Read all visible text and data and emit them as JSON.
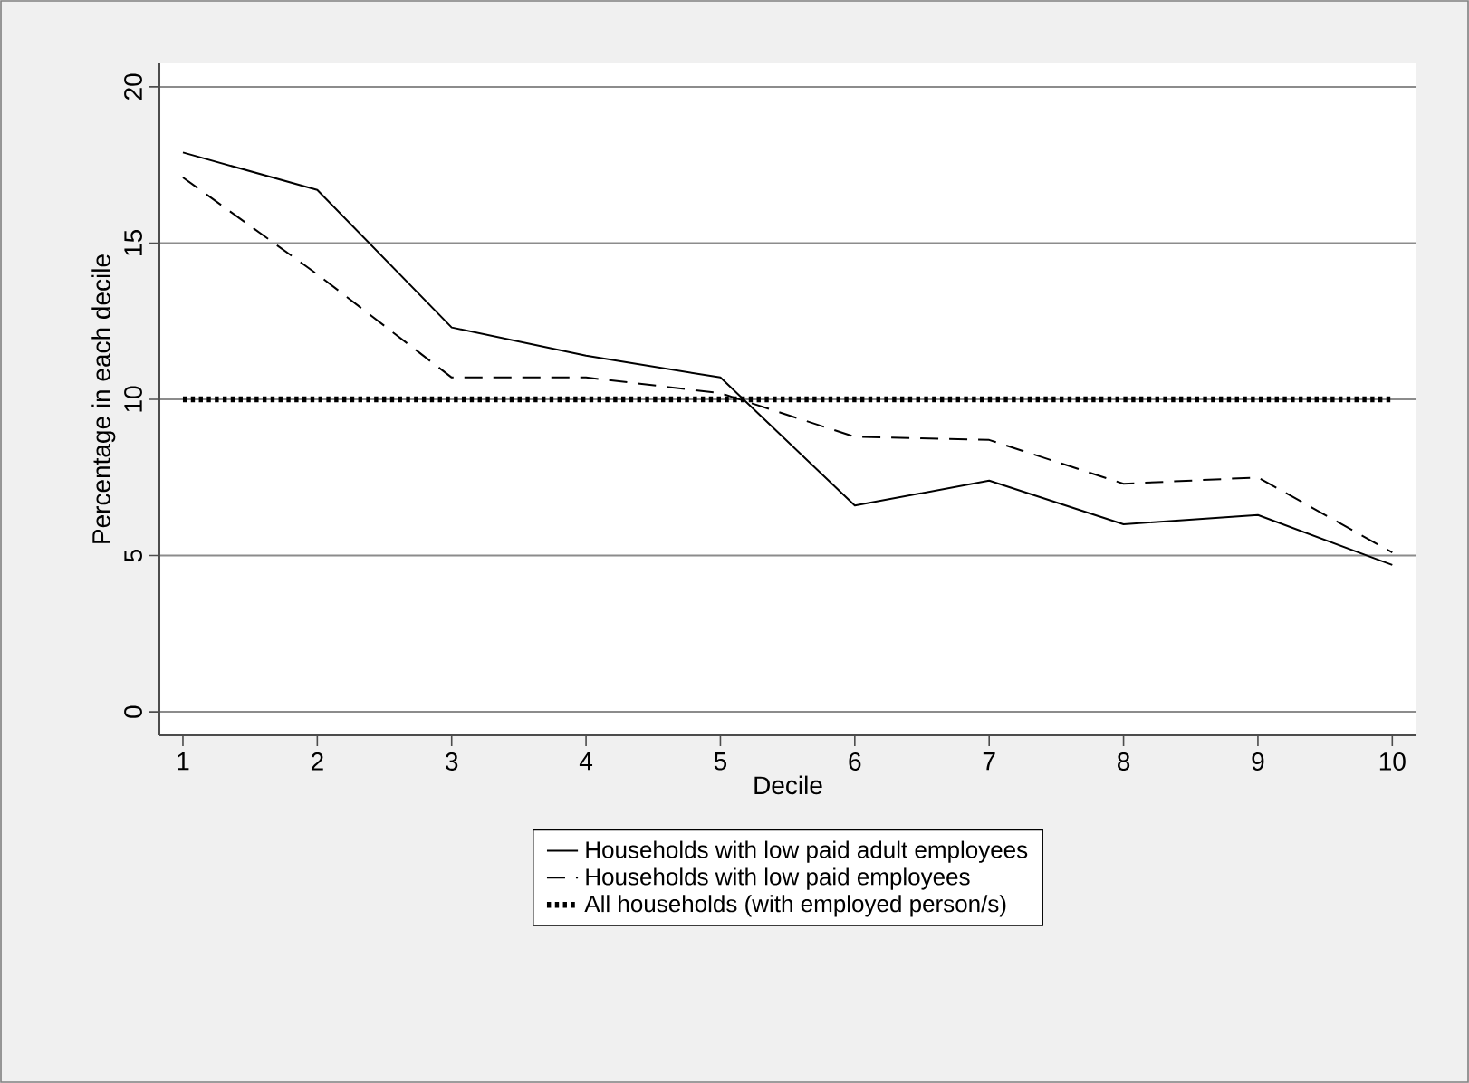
{
  "chart_data": {
    "type": "line",
    "xlabel": "Decile",
    "ylabel": "Percentage in each decile",
    "x": [
      1,
      2,
      3,
      4,
      5,
      6,
      7,
      8,
      9,
      10
    ],
    "series": [
      {
        "name": "Households with low paid adult employees",
        "color": "#000000",
        "line_style": "solid",
        "values": [
          17.9,
          16.7,
          12.3,
          11.4,
          10.7,
          6.6,
          7.4,
          6.0,
          6.3,
          4.7
        ]
      },
      {
        "name": "Households with low paid employees",
        "color": "#000000",
        "line_style": "dashed",
        "values": [
          17.1,
          14.0,
          10.7,
          10.7,
          10.2,
          8.8,
          8.7,
          7.3,
          7.5,
          5.1
        ]
      },
      {
        "name": "All households (with employed person/s)",
        "color": "#000000",
        "line_style": "dotted",
        "values": [
          10,
          10,
          10,
          10,
          10,
          10,
          10,
          10,
          10,
          10
        ]
      }
    ],
    "xlim": [
      0.825,
      10.18
    ],
    "ylim": [
      -0.75,
      20.75
    ],
    "xticks": [
      1,
      2,
      3,
      4,
      5,
      6,
      7,
      8,
      9,
      10
    ],
    "yticks": [
      0,
      5,
      10,
      15,
      20
    ],
    "grid": "y",
    "legend": "bottom",
    "marker": "none"
  }
}
